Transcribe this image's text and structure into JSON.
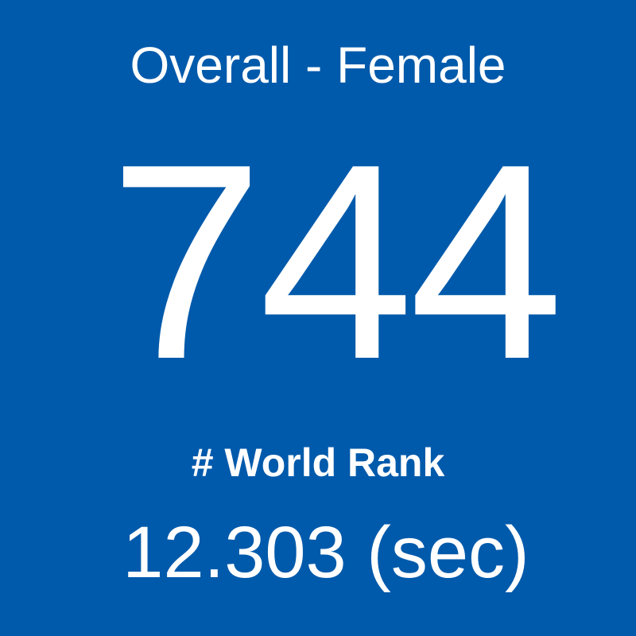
{
  "header": {
    "title": "Overall - Female"
  },
  "rank": {
    "value": "744",
    "label": "# World Rank"
  },
  "time": "12.303 (sec)"
}
